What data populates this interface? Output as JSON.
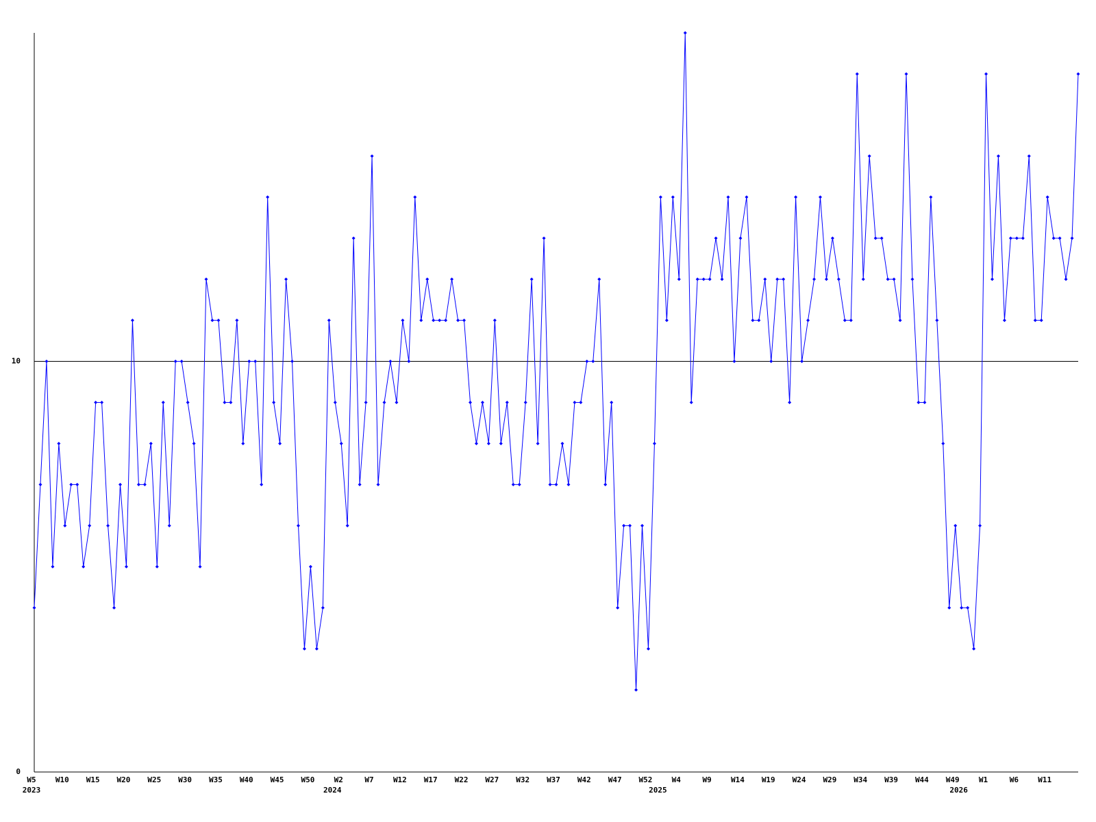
{
  "chart_data": {
    "type": "line",
    "categories": [
      "W5",
      null,
      null,
      null,
      null,
      "W10",
      null,
      null,
      null,
      null,
      "W15",
      null,
      null,
      null,
      null,
      "W20",
      null,
      null,
      null,
      null,
      "W25",
      null,
      null,
      null,
      null,
      "W30",
      null,
      null,
      null,
      null,
      "W35",
      null,
      null,
      null,
      null,
      "W40",
      null,
      null,
      null,
      null,
      "W45",
      null,
      null,
      null,
      null,
      "W50",
      null,
      null,
      null,
      null,
      "W2",
      null,
      null,
      null,
      null,
      "W7",
      null,
      null,
      null,
      null,
      "W12",
      null,
      null,
      null,
      null,
      "W17",
      null,
      null,
      null,
      null,
      "W22",
      null,
      null,
      null,
      null,
      "W27",
      null,
      null,
      null,
      null,
      "W32",
      null,
      null,
      null,
      null,
      "W37",
      null,
      null,
      null,
      null,
      "W42",
      null,
      null,
      null,
      null,
      "W47",
      null,
      null,
      null,
      null,
      "W52",
      null,
      null,
      null,
      null,
      "W4",
      null,
      null,
      null,
      null,
      "W9",
      null,
      null,
      null,
      null,
      "W14",
      null,
      null,
      null,
      null,
      "W19",
      null,
      null,
      null,
      null,
      "W24",
      null,
      null,
      null,
      null,
      "W29",
      null,
      null,
      null,
      null,
      "W34",
      null,
      null,
      null,
      null,
      "W39",
      null,
      null,
      null,
      null,
      "W44",
      null,
      null,
      null,
      null,
      "W49",
      null,
      null,
      null,
      null,
      "W1",
      null,
      null,
      null,
      null,
      "W6",
      null,
      null,
      null,
      null,
      "W11",
      null,
      null,
      null,
      null,
      null
    ],
    "year_labels": [
      "2023",
      null,
      null,
      null,
      null,
      null,
      null,
      null,
      null,
      null,
      null,
      null,
      null,
      null,
      null,
      null,
      null,
      null,
      null,
      null,
      null,
      null,
      null,
      null,
      null,
      null,
      null,
      null,
      null,
      null,
      null,
      null,
      null,
      null,
      null,
      null,
      null,
      null,
      null,
      null,
      null,
      null,
      null,
      null,
      null,
      null,
      null,
      null,
      null,
      "2024",
      null,
      null,
      null,
      null,
      null,
      null,
      null,
      null,
      null,
      null,
      null,
      null,
      null,
      null,
      null,
      null,
      null,
      null,
      null,
      null,
      null,
      null,
      null,
      null,
      null,
      null,
      null,
      null,
      null,
      null,
      null,
      null,
      null,
      null,
      null,
      null,
      null,
      null,
      null,
      null,
      null,
      null,
      null,
      null,
      null,
      null,
      null,
      null,
      null,
      null,
      null,
      null,
      "2025",
      null,
      null,
      null,
      null,
      null,
      null,
      null,
      null,
      null,
      null,
      null,
      null,
      null,
      null,
      null,
      null,
      null,
      null,
      null,
      null,
      null,
      null,
      null,
      null,
      null,
      null,
      null,
      null,
      null,
      null,
      null,
      null,
      null,
      null,
      null,
      null,
      null,
      null,
      null,
      null,
      null,
      null,
      null,
      null,
      null,
      null,
      null,
      null,
      "2026",
      null,
      null,
      null,
      null,
      null,
      null,
      null,
      null,
      null,
      null,
      null,
      null,
      null,
      null,
      null
    ],
    "values": [
      4,
      7,
      10,
      5,
      8,
      6,
      7,
      7,
      5,
      6,
      9,
      9,
      6,
      4,
      7,
      5,
      11,
      7,
      7,
      8,
      5,
      9,
      6,
      10,
      10,
      9,
      8,
      5,
      12,
      11,
      11,
      9,
      9,
      11,
      8,
      10,
      10,
      7,
      14,
      9,
      8,
      12,
      10,
      6,
      3,
      5,
      3,
      4,
      11,
      9,
      8,
      6,
      13,
      7,
      9,
      15,
      7,
      9,
      10,
      9,
      11,
      10,
      14,
      11,
      12,
      11,
      11,
      11,
      12,
      11,
      11,
      9,
      8,
      9,
      8,
      11,
      8,
      9,
      7,
      7,
      9,
      12,
      8,
      13,
      7,
      7,
      8,
      7,
      9,
      9,
      10,
      10,
      12,
      7,
      9,
      4,
      6,
      6,
      2,
      6,
      3,
      8,
      14,
      11,
      14,
      12,
      18,
      9,
      12,
      12,
      12,
      13,
      12,
      14,
      10,
      13,
      14,
      11,
      11,
      12,
      10,
      12,
      12,
      9,
      14,
      10,
      11,
      12,
      14,
      12,
      13,
      12,
      11,
      11,
      17,
      12,
      15,
      13,
      13,
      12,
      12,
      11,
      17,
      12,
      9,
      9,
      14,
      11,
      8,
      4,
      6,
      4,
      4,
      3,
      6,
      17,
      12,
      15,
      11,
      13,
      13,
      13,
      15,
      11,
      11,
      14,
      13,
      13,
      12,
      13,
      17
    ],
    "color": "#0000ff",
    "ylim": [
      0,
      18
    ],
    "yticks": [
      0,
      10
    ],
    "grid": true
  }
}
